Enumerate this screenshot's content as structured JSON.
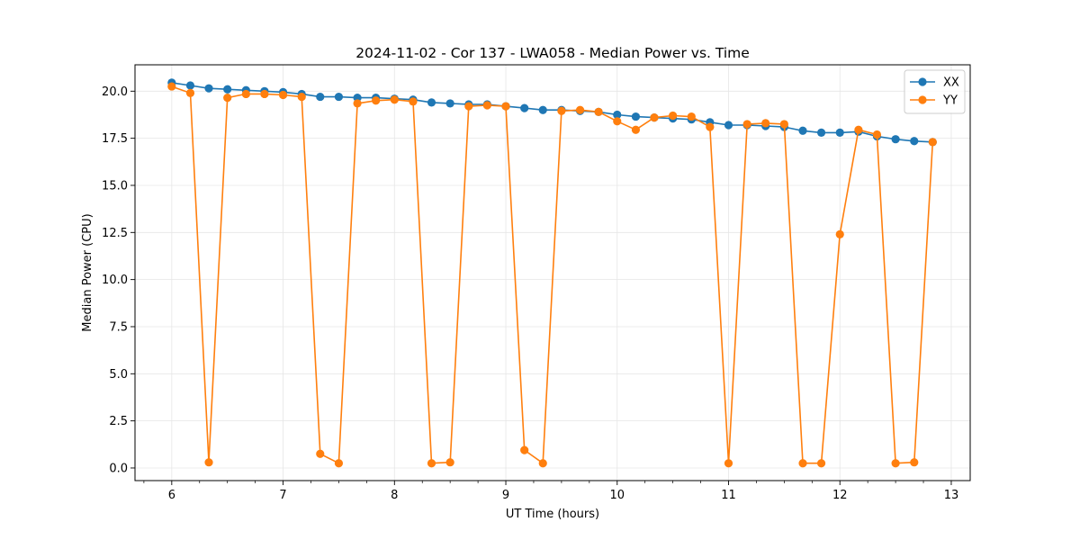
{
  "chart_data": {
    "type": "line",
    "title": "2024-11-02 - Cor 137 - LWA058 - Median Power vs. Time",
    "xlabel": "UT Time (hours)",
    "ylabel": "Median Power (CPU)",
    "xlim": [
      5.67,
      13.17
    ],
    "ylim": [
      -0.67,
      21.4
    ],
    "xticks": [
      6,
      7,
      8,
      9,
      10,
      11,
      12,
      13
    ],
    "xtick_labels": [
      "6",
      "7",
      "8",
      "9",
      "10",
      "11",
      "12",
      "13"
    ],
    "yticks": [
      0,
      2.5,
      5,
      7.5,
      10,
      12.5,
      15,
      17.5,
      20
    ],
    "ytick_labels": [
      "0.0",
      "2.5",
      "5.0",
      "7.5",
      "10.0",
      "12.5",
      "15.0",
      "17.5",
      "20.0"
    ],
    "grid": true,
    "legend_position": "top-right",
    "x": [
      6.0,
      6.167,
      6.333,
      6.5,
      6.667,
      6.833,
      7.0,
      7.167,
      7.333,
      7.5,
      7.667,
      7.833,
      8.0,
      8.167,
      8.333,
      8.5,
      8.667,
      8.833,
      9.0,
      9.167,
      9.333,
      9.5,
      9.667,
      9.833,
      10.0,
      10.167,
      10.333,
      10.5,
      10.667,
      10.833,
      11.0,
      11.167,
      11.333,
      11.5,
      11.667,
      11.833,
      12.0,
      12.167,
      12.333,
      12.5,
      12.667,
      12.833
    ],
    "series": [
      {
        "name": "XX",
        "color": "#1f77b4",
        "values": [
          20.45,
          20.3,
          20.15,
          20.1,
          20.05,
          20.0,
          19.95,
          19.85,
          19.7,
          19.7,
          19.65,
          19.65,
          19.6,
          19.55,
          19.4,
          19.35,
          19.3,
          19.3,
          19.2,
          19.1,
          19.0,
          19.0,
          18.95,
          18.9,
          18.75,
          18.65,
          18.6,
          18.55,
          18.5,
          18.35,
          18.2,
          18.2,
          18.15,
          18.1,
          17.9,
          17.8,
          17.8,
          17.85,
          17.6,
          17.45,
          17.35,
          17.3
        ]
      },
      {
        "name": "YY",
        "color": "#ff7f0e",
        "values": [
          20.25,
          19.9,
          0.3,
          19.65,
          19.85,
          19.85,
          19.8,
          19.7,
          0.75,
          0.25,
          19.35,
          19.5,
          19.55,
          19.45,
          0.25,
          0.3,
          19.2,
          19.25,
          19.2,
          0.95,
          0.25,
          18.95,
          19.0,
          18.9,
          18.4,
          17.95,
          18.6,
          18.7,
          18.65,
          18.1,
          0.25,
          18.25,
          18.3,
          18.25,
          0.25,
          0.25,
          12.4,
          17.95,
          17.7,
          0.25,
          0.3,
          17.3
        ]
      }
    ]
  }
}
